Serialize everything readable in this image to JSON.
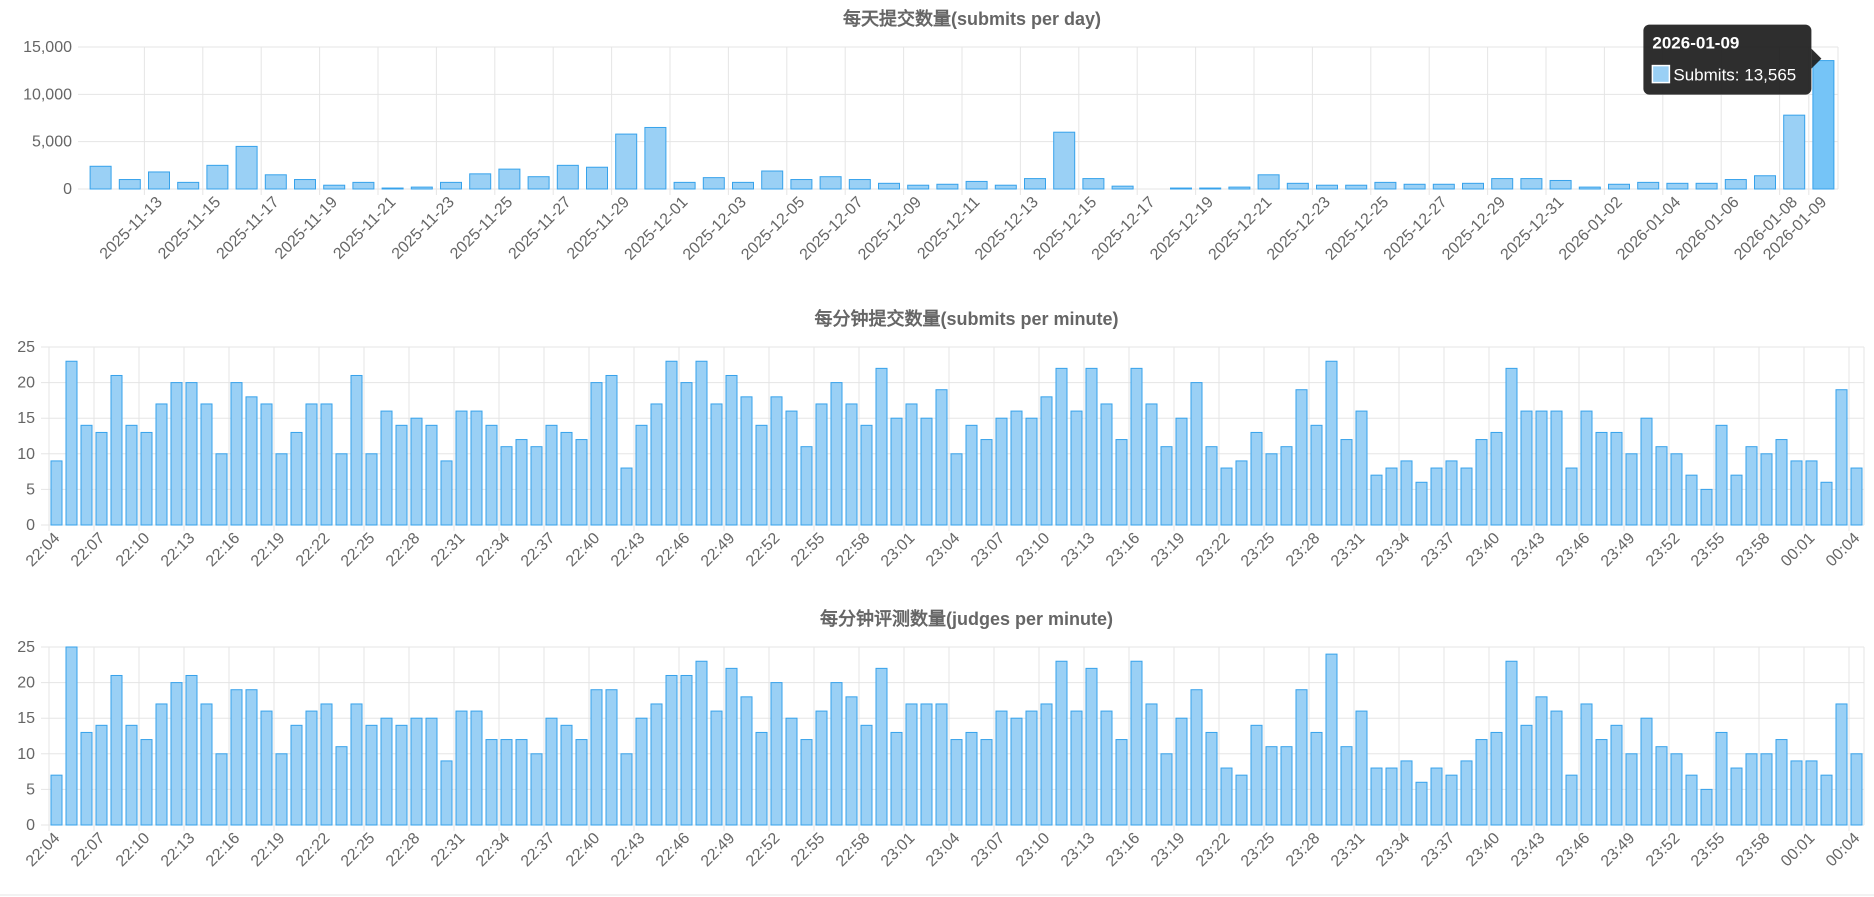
{
  "colors": {
    "bar_fill": "#9ad0f5",
    "bar_stroke": "#36a2eb",
    "active_fill": "#75c4f7",
    "grid": "#e5e5e5",
    "text": "#666666",
    "tooltip_bg": "#1c1c1c"
  },
  "chart_data": [
    {
      "id": "day",
      "type": "bar",
      "title": "每天提交数量(submits per day)",
      "series": [
        {
          "name": "Submits"
        }
      ],
      "ylim": [
        0,
        15000
      ],
      "yticks": [
        "0",
        "5,000",
        "10,000",
        "15,000"
      ],
      "ytick_values": [
        0,
        5000,
        10000,
        15000
      ],
      "grid": true,
      "categories": [
        "2025-11-11",
        "2025-11-12",
        "2025-11-13",
        "2025-11-14",
        "2025-11-15",
        "2025-11-16",
        "2025-11-17",
        "2025-11-18",
        "2025-11-19",
        "2025-11-20",
        "2025-11-21",
        "2025-11-22",
        "2025-11-23",
        "2025-11-24",
        "2025-11-25",
        "2025-11-26",
        "2025-11-27",
        "2025-11-28",
        "2025-11-29",
        "2025-11-30",
        "2025-12-01",
        "2025-12-02",
        "2025-12-03",
        "2025-12-04",
        "2025-12-05",
        "2025-12-06",
        "2025-12-07",
        "2025-12-08",
        "2025-12-09",
        "2025-12-10",
        "2025-12-11",
        "2025-12-12",
        "2025-12-13",
        "2025-12-14",
        "2025-12-15",
        "2025-12-16",
        "2025-12-17",
        "2025-12-18",
        "2025-12-19",
        "2025-12-20",
        "2025-12-21",
        "2025-12-22",
        "2025-12-23",
        "2025-12-24",
        "2025-12-25",
        "2025-12-26",
        "2025-12-27",
        "2025-12-28",
        "2025-12-29",
        "2025-12-30",
        "2025-12-31",
        "2026-01-01",
        "2026-01-02",
        "2026-01-03",
        "2026-01-04",
        "2026-01-05",
        "2026-01-06",
        "2026-01-07",
        "2026-01-08",
        "2026-01-09"
      ],
      "values": [
        2400,
        1000,
        1800,
        700,
        2500,
        4500,
        1500,
        1000,
        400,
        700,
        100,
        200,
        700,
        1600,
        2100,
        1300,
        2500,
        2300,
        5800,
        6500,
        700,
        1200,
        700,
        1900,
        1000,
        1300,
        1000,
        600,
        400,
        500,
        800,
        400,
        1100,
        6000,
        1100,
        300,
        0,
        100,
        100,
        200,
        1500,
        600,
        400,
        400,
        700,
        500,
        500,
        600,
        1100,
        1100,
        900,
        200,
        500,
        700,
        600,
        600,
        1000,
        1400,
        7800,
        13565
      ],
      "label_every": 2,
      "label_offset": 0,
      "tick_shift": 2,
      "active_index": 59,
      "tooltip": {
        "date": "2026-01-09",
        "label": "Submits: 13,565"
      }
    },
    {
      "id": "minute_submits",
      "type": "bar",
      "title": "每分钟提交数量(submits per minute)",
      "ylim": [
        0,
        25
      ],
      "yticks": [
        "0",
        "5",
        "10",
        "15",
        "20",
        "25"
      ],
      "ytick_values": [
        0,
        5,
        10,
        15,
        20,
        25
      ],
      "grid": true,
      "start_time": "22:04",
      "values": [
        9,
        23,
        14,
        13,
        21,
        14,
        13,
        17,
        20,
        20,
        17,
        10,
        20,
        18,
        17,
        10,
        13,
        17,
        17,
        10,
        21,
        10,
        16,
        14,
        15,
        14,
        9,
        16,
        16,
        14,
        11,
        12,
        11,
        14,
        13,
        12,
        20,
        21,
        8,
        14,
        17,
        23,
        20,
        23,
        17,
        21,
        18,
        14,
        18,
        16,
        11,
        17,
        20,
        17,
        14,
        22,
        15,
        17,
        15,
        19,
        10,
        14,
        12,
        15,
        16,
        15,
        18,
        22,
        16,
        22,
        17,
        12,
        22,
        17,
        11,
        15,
        20,
        11,
        8,
        9,
        13,
        10,
        11,
        19,
        14,
        23,
        12,
        16,
        7,
        8,
        9,
        6,
        8,
        9,
        8,
        12,
        13,
        22,
        16,
        16,
        16,
        8,
        16,
        13,
        13,
        10,
        15,
        11,
        10,
        7,
        5,
        14,
        7,
        11,
        10,
        12,
        9,
        9,
        6,
        19,
        8
      ],
      "categories": [
        "22:04",
        "22:05",
        "22:06",
        "22:07",
        "22:08",
        "22:09",
        "22:10",
        "22:11",
        "22:12",
        "22:13",
        "22:14",
        "22:15",
        "22:16",
        "22:17",
        "22:18",
        "22:19",
        "22:20",
        "22:21",
        "22:22",
        "22:23",
        "22:24",
        "22:25",
        "22:26",
        "22:27",
        "22:28",
        "22:29",
        "22:30",
        "22:31",
        "22:32",
        "22:33",
        "22:34",
        "22:35",
        "22:36",
        "22:37",
        "22:38",
        "22:39",
        "22:40",
        "22:41",
        "22:42",
        "22:43",
        "22:44",
        "22:45",
        "22:46",
        "22:47",
        "22:48",
        "22:49",
        "22:50",
        "22:51",
        "22:52",
        "22:53",
        "22:54",
        "22:55",
        "22:56",
        "22:57",
        "22:58",
        "22:59",
        "23:00",
        "23:01",
        "23:02",
        "23:03",
        "23:04",
        "23:05",
        "23:06",
        "23:07",
        "23:08",
        "23:09",
        "23:10",
        "23:11",
        "23:12",
        "23:13",
        "23:14",
        "23:15",
        "23:16",
        "23:17",
        "23:18",
        "23:19",
        "23:20",
        "23:21",
        "23:22",
        "23:23",
        "23:24",
        "23:25",
        "23:26",
        "23:27",
        "23:28",
        "23:29",
        "23:30",
        "23:31",
        "23:32",
        "23:33",
        "23:34",
        "23:35",
        "23:36",
        "23:37",
        "23:38",
        "23:39",
        "23:40",
        "23:41",
        "23:42",
        "23:43",
        "23:44",
        "23:45",
        "23:46",
        "23:47",
        "23:48",
        "23:49",
        "23:50",
        "23:51",
        "23:52",
        "23:53",
        "23:54",
        "23:55",
        "23:56",
        "23:57",
        "23:58",
        "23:59",
        "00:00",
        "00:01",
        "00:02",
        "00:03",
        "00:04"
      ],
      "label_every": 3,
      "label_offset": 0,
      "tick_shift": 0
    },
    {
      "id": "minute_judges",
      "type": "bar",
      "title": "每分钟评测数量(judges per minute)",
      "ylim": [
        0,
        25
      ],
      "yticks": [
        "0",
        "5",
        "10",
        "15",
        "20",
        "25"
      ],
      "ytick_values": [
        0,
        5,
        10,
        15,
        20,
        25
      ],
      "grid": true,
      "values": [
        7,
        25,
        13,
        14,
        21,
        14,
        12,
        17,
        20,
        21,
        17,
        10,
        19,
        19,
        16,
        10,
        14,
        16,
        17,
        11,
        17,
        14,
        15,
        14,
        15,
        15,
        9,
        16,
        16,
        12,
        12,
        12,
        10,
        15,
        14,
        12,
        19,
        19,
        10,
        15,
        17,
        21,
        21,
        23,
        16,
        22,
        18,
        13,
        20,
        15,
        12,
        16,
        20,
        18,
        14,
        22,
        13,
        17,
        17,
        17,
        12,
        13,
        12,
        16,
        15,
        16,
        17,
        23,
        16,
        22,
        16,
        12,
        23,
        17,
        10,
        15,
        19,
        13,
        8,
        7,
        14,
        11,
        11,
        19,
        13,
        24,
        11,
        16,
        8,
        8,
        9,
        6,
        8,
        7,
        9,
        12,
        13,
        23,
        14,
        18,
        16,
        7,
        17,
        12,
        14,
        10,
        15,
        11,
        10,
        7,
        5,
        13,
        8,
        10,
        10,
        12,
        9,
        9,
        7,
        17,
        10
      ],
      "categories": [
        "22:04",
        "22:05",
        "22:06",
        "22:07",
        "22:08",
        "22:09",
        "22:10",
        "22:11",
        "22:12",
        "22:13",
        "22:14",
        "22:15",
        "22:16",
        "22:17",
        "22:18",
        "22:19",
        "22:20",
        "22:21",
        "22:22",
        "22:23",
        "22:24",
        "22:25",
        "22:26",
        "22:27",
        "22:28",
        "22:29",
        "22:30",
        "22:31",
        "22:32",
        "22:33",
        "22:34",
        "22:35",
        "22:36",
        "22:37",
        "22:38",
        "22:39",
        "22:40",
        "22:41",
        "22:42",
        "22:43",
        "22:44",
        "22:45",
        "22:46",
        "22:47",
        "22:48",
        "22:49",
        "22:50",
        "22:51",
        "22:52",
        "22:53",
        "22:54",
        "22:55",
        "22:56",
        "22:57",
        "22:58",
        "22:59",
        "23:00",
        "23:01",
        "23:02",
        "23:03",
        "23:04",
        "23:05",
        "23:06",
        "23:07",
        "23:08",
        "23:09",
        "23:10",
        "23:11",
        "23:12",
        "23:13",
        "23:14",
        "23:15",
        "23:16",
        "23:17",
        "23:18",
        "23:19",
        "23:20",
        "23:21",
        "23:22",
        "23:23",
        "23:24",
        "23:25",
        "23:26",
        "23:27",
        "23:28",
        "23:29",
        "23:30",
        "23:31",
        "23:32",
        "23:33",
        "23:34",
        "23:35",
        "23:36",
        "23:37",
        "23:38",
        "23:39",
        "23:40",
        "23:41",
        "23:42",
        "23:43",
        "23:44",
        "23:45",
        "23:46",
        "23:47",
        "23:48",
        "23:49",
        "23:50",
        "23:51",
        "23:52",
        "23:53",
        "23:54",
        "23:55",
        "23:56",
        "23:57",
        "23:58",
        "23:59",
        "00:00",
        "00:01",
        "00:02",
        "00:03",
        "00:04"
      ],
      "label_every": 3,
      "label_offset": 0,
      "tick_shift": 0
    }
  ]
}
